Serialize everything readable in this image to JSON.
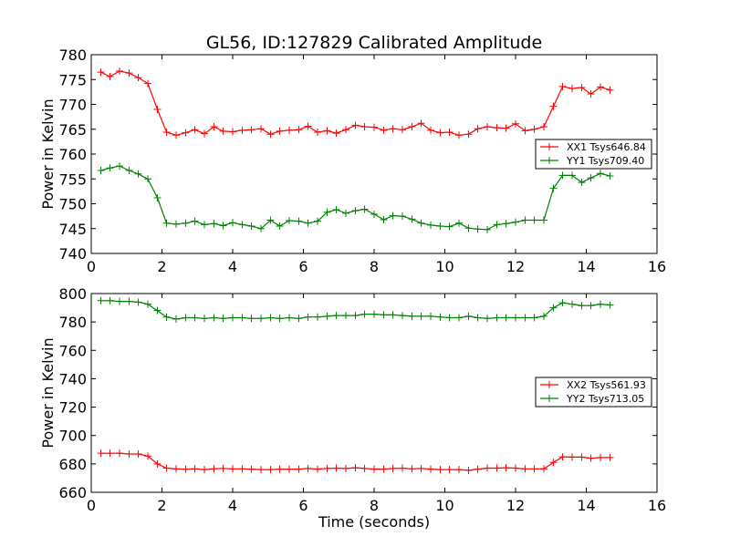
{
  "figure": {
    "title": "GL56, ID:127829 Calibrated Amplitude",
    "xlabel": "Time (seconds)"
  },
  "chart_data": [
    {
      "type": "line",
      "ylabel": "Power in Kelvin",
      "xlim": [
        0,
        16
      ],
      "ylim": [
        740,
        780
      ],
      "xticks": [
        "0",
        "2",
        "4",
        "6",
        "8",
        "10",
        "12",
        "14",
        "16"
      ],
      "yticks": [
        "740",
        "745",
        "750",
        "755",
        "760",
        "765",
        "770",
        "775",
        "780"
      ],
      "legend_position": "right",
      "x": [
        0.27,
        0.53,
        0.8,
        1.07,
        1.33,
        1.6,
        1.87,
        2.13,
        2.4,
        2.67,
        2.93,
        3.2,
        3.47,
        3.73,
        4.0,
        4.27,
        4.53,
        4.8,
        5.07,
        5.33,
        5.6,
        5.87,
        6.13,
        6.4,
        6.67,
        6.93,
        7.2,
        7.47,
        7.73,
        8.0,
        8.27,
        8.53,
        8.8,
        9.07,
        9.33,
        9.6,
        9.87,
        10.13,
        10.4,
        10.67,
        10.93,
        11.2,
        11.47,
        11.73,
        12.0,
        12.27,
        12.53,
        12.8,
        13.07,
        13.33,
        13.6,
        13.87,
        14.13,
        14.4,
        14.67
      ],
      "series": [
        {
          "name": "XX1 Tsys646.84",
          "color": "#ff0000",
          "values": [
            776.5,
            775.6,
            776.7,
            776.3,
            775.4,
            774.2,
            769.0,
            764.4,
            763.8,
            764.3,
            764.9,
            764.1,
            765.5,
            764.6,
            764.5,
            764.8,
            764.9,
            765.1,
            764.0,
            764.6,
            764.8,
            764.9,
            765.6,
            764.4,
            764.7,
            764.2,
            764.9,
            765.8,
            765.5,
            765.4,
            764.8,
            765.1,
            764.9,
            765.5,
            766.2,
            764.8,
            764.3,
            764.4,
            763.8,
            764.0,
            765.1,
            765.5,
            765.3,
            765.2,
            766.1,
            764.7,
            765.0,
            765.5,
            769.6,
            773.6,
            773.2,
            773.4,
            772.1,
            773.5,
            772.9
          ]
        },
        {
          "name": "YY1 Tsys709.40",
          "color": "#008000",
          "values": [
            756.7,
            757.2,
            757.6,
            756.7,
            756.0,
            755.0,
            751.2,
            746.1,
            745.9,
            746.1,
            746.5,
            745.8,
            746.0,
            745.6,
            746.2,
            745.8,
            745.5,
            745.0,
            746.7,
            745.5,
            746.6,
            746.5,
            746.1,
            746.5,
            748.3,
            748.8,
            748.1,
            748.6,
            748.9,
            747.9,
            746.8,
            747.6,
            747.5,
            746.9,
            746.1,
            745.7,
            745.5,
            745.4,
            746.1,
            745.1,
            744.9,
            744.8,
            745.8,
            746.0,
            746.3,
            746.7,
            746.7,
            746.7,
            753.1,
            755.7,
            755.7,
            754.3,
            755.2,
            756.1,
            755.6
          ]
        }
      ]
    },
    {
      "type": "line",
      "ylabel": "Power in Kelvin",
      "xlabel": "Time (seconds)",
      "xlim": [
        0,
        16
      ],
      "ylim": [
        660,
        800
      ],
      "xticks": [
        "0",
        "2",
        "4",
        "6",
        "8",
        "10",
        "12",
        "14",
        "16"
      ],
      "yticks": [
        "660",
        "680",
        "700",
        "720",
        "740",
        "760",
        "780",
        "800"
      ],
      "legend_position": "right",
      "x": [
        0.27,
        0.53,
        0.8,
        1.07,
        1.33,
        1.6,
        1.87,
        2.13,
        2.4,
        2.67,
        2.93,
        3.2,
        3.47,
        3.73,
        4.0,
        4.27,
        4.53,
        4.8,
        5.07,
        5.33,
        5.6,
        5.87,
        6.13,
        6.4,
        6.67,
        6.93,
        7.2,
        7.47,
        7.73,
        8.0,
        8.27,
        8.53,
        8.8,
        9.07,
        9.33,
        9.6,
        9.87,
        10.13,
        10.4,
        10.67,
        10.93,
        11.2,
        11.47,
        11.73,
        12.0,
        12.27,
        12.53,
        12.8,
        13.07,
        13.33,
        13.6,
        13.87,
        14.13,
        14.4,
        14.67
      ],
      "series": [
        {
          "name": "XX2 Tsys561.93",
          "color": "#ff0000",
          "values": [
            687.5,
            687.5,
            687.5,
            687.0,
            687.0,
            685.5,
            680.0,
            677.0,
            676.5,
            676.3,
            676.5,
            676.0,
            676.5,
            676.8,
            676.5,
            676.5,
            676.3,
            676.0,
            676.0,
            676.3,
            676.3,
            676.3,
            676.8,
            676.3,
            676.8,
            677.0,
            676.8,
            677.3,
            676.8,
            676.3,
            676.3,
            676.8,
            677.0,
            676.5,
            676.8,
            676.3,
            676.0,
            676.0,
            676.0,
            675.5,
            676.3,
            677.0,
            677.0,
            677.3,
            677.0,
            676.5,
            676.5,
            676.5,
            681.0,
            685.0,
            684.8,
            684.8,
            684.0,
            684.5,
            684.5
          ]
        },
        {
          "name": "YY2 Tsys713.05",
          "color": "#008000",
          "values": [
            795.0,
            795.0,
            794.5,
            794.5,
            794.0,
            792.5,
            788.0,
            783.5,
            782.0,
            783.0,
            783.0,
            782.5,
            783.0,
            782.5,
            783.0,
            783.0,
            782.5,
            782.5,
            783.0,
            782.5,
            783.0,
            782.5,
            783.5,
            783.5,
            784.0,
            784.5,
            784.5,
            784.5,
            785.5,
            785.5,
            785.0,
            785.0,
            784.5,
            784.0,
            784.0,
            784.0,
            783.5,
            783.0,
            783.0,
            784.0,
            783.0,
            782.5,
            783.0,
            783.0,
            783.0,
            783.0,
            783.0,
            784.0,
            790.0,
            793.5,
            792.5,
            791.5,
            791.5,
            792.5,
            792.0
          ]
        }
      ]
    }
  ]
}
